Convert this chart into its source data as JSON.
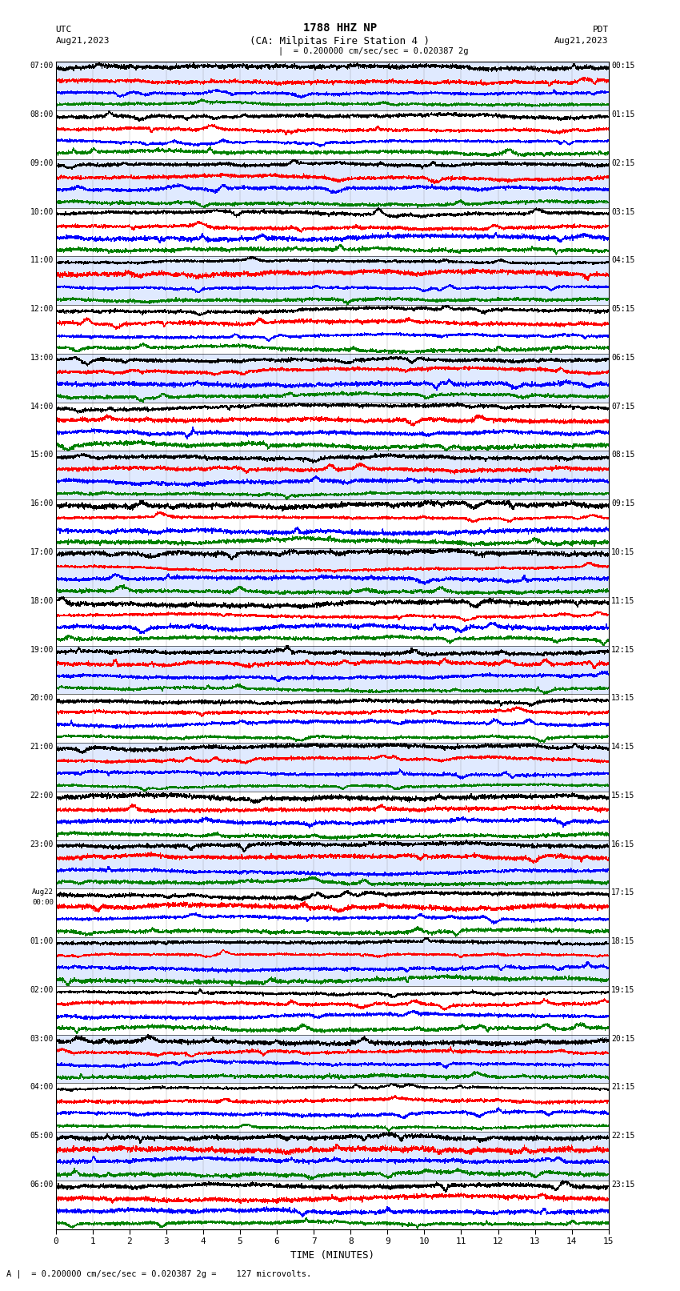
{
  "title_line1": "1788 HHZ NP",
  "title_line2": "(CA: Milpitas Fire Station 4 )",
  "scale_text": "= 0.200000 cm/sec/sec = 0.020387 2g",
  "left_label": "UTC",
  "left_date": "Aug21,2023",
  "right_label": "PDT",
  "right_date": "Aug21,2023",
  "bottom_label": "TIME (MINUTES)",
  "bottom_note": "= 0.200000 cm/sec/sec = 0.020387 2g =    127 microvolts.",
  "utc_labels": [
    "07:00",
    "08:00",
    "09:00",
    "10:00",
    "11:00",
    "12:00",
    "13:00",
    "14:00",
    "15:00",
    "16:00",
    "17:00",
    "18:00",
    "19:00",
    "20:00",
    "21:00",
    "22:00",
    "23:00",
    "Aug22\n00:00",
    "01:00",
    "02:00",
    "03:00",
    "04:00",
    "05:00",
    "06:00"
  ],
  "pdt_labels": [
    "00:15",
    "01:15",
    "02:15",
    "03:15",
    "04:15",
    "05:15",
    "06:15",
    "07:15",
    "08:15",
    "09:15",
    "10:15",
    "11:15",
    "12:15",
    "13:15",
    "14:15",
    "15:15",
    "16:15",
    "17:15",
    "18:15",
    "19:15",
    "20:15",
    "21:15",
    "22:15",
    "23:15"
  ],
  "num_groups": 24,
  "colors": [
    "black",
    "red",
    "blue",
    "green"
  ],
  "fig_width": 8.5,
  "fig_height": 16.13,
  "dpi": 100
}
